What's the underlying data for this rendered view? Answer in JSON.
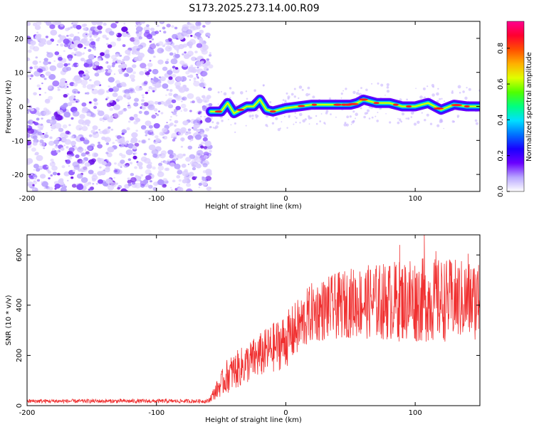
{
  "title": "S173.2025.273.14.00.R09",
  "chart_data": [
    {
      "type": "heatmap",
      "xlabel": "Height of straight line (km)",
      "ylabel": "Frequency (Hz)",
      "xlim": [
        -200,
        150
      ],
      "ylim": [
        -25,
        25
      ],
      "xticks": [
        -200,
        -100,
        0,
        100
      ],
      "xtick_labels": [
        "-200",
        "-100",
        "0",
        "100"
      ],
      "yticks": [
        -20,
        -10,
        0,
        10,
        20
      ],
      "ytick_labels": [
        "-20",
        "-10",
        "0",
        "10",
        "20"
      ],
      "noise_region_x": [
        -200,
        -58
      ],
      "signal_track": [
        {
          "x": -58,
          "y": -1.5
        },
        {
          "x": -50,
          "y": -1.5
        },
        {
          "x": -45,
          "y": 1
        },
        {
          "x": -40,
          "y": -2
        },
        {
          "x": -35,
          "y": -1
        },
        {
          "x": -30,
          "y": 0
        },
        {
          "x": -25,
          "y": 0
        },
        {
          "x": -20,
          "y": 2
        },
        {
          "x": -15,
          "y": -1
        },
        {
          "x": -10,
          "y": -1.5
        },
        {
          "x": -5,
          "y": -1
        },
        {
          "x": 0,
          "y": -0.5
        },
        {
          "x": 10,
          "y": 0
        },
        {
          "x": 20,
          "y": 0.5
        },
        {
          "x": 30,
          "y": 0.5
        },
        {
          "x": 40,
          "y": 0.5
        },
        {
          "x": 50,
          "y": 0.5
        },
        {
          "x": 55,
          "y": 1
        },
        {
          "x": 60,
          "y": 2
        },
        {
          "x": 70,
          "y": 1
        },
        {
          "x": 80,
          "y": 1
        },
        {
          "x": 90,
          "y": 0
        },
        {
          "x": 100,
          "y": 0
        },
        {
          "x": 110,
          "y": 1
        },
        {
          "x": 120,
          "y": -1
        },
        {
          "x": 130,
          "y": 0.5
        },
        {
          "x": 140,
          "y": 0
        },
        {
          "x": 150,
          "y": 0
        }
      ]
    },
    {
      "type": "colorbar",
      "label": "Normalized spectral amplitude",
      "range": [
        0,
        0.95
      ],
      "ticks": [
        0.0,
        0.2,
        0.4,
        0.6,
        0.8
      ],
      "tick_labels": [
        "0.0",
        "0.2",
        "0.4",
        "0.6",
        "0.8"
      ],
      "colors": [
        "#ffffff",
        "#b8a6ff",
        "#6a00ff",
        "#1a00ff",
        "#0070ff",
        "#00e0ff",
        "#00ff80",
        "#50ff00",
        "#e0ff00",
        "#ffb000",
        "#ff5000",
        "#ff0030",
        "#ff0090"
      ]
    },
    {
      "type": "line",
      "xlabel": "Height of straight line (km)",
      "ylabel": "SNR (10 * v/v)",
      "xlim": [
        -200,
        150
      ],
      "ylim": [
        0,
        680
      ],
      "xticks": [
        -200,
        -100,
        0,
        100
      ],
      "xtick_labels": [
        "-200",
        "-100",
        "0",
        "100"
      ],
      "yticks": [
        0,
        200,
        400,
        600
      ],
      "ytick_labels": [
        "0",
        "200",
        "400",
        "600"
      ],
      "line_color": "#f03030",
      "envelope": [
        {
          "x": -200,
          "mean": 18,
          "spread": 8
        },
        {
          "x": -60,
          "mean": 18,
          "spread": 8
        },
        {
          "x": -45,
          "mean": 120,
          "spread": 70
        },
        {
          "x": -20,
          "mean": 200,
          "spread": 90
        },
        {
          "x": 0,
          "mean": 260,
          "spread": 110
        },
        {
          "x": 20,
          "mean": 370,
          "spread": 120
        },
        {
          "x": 50,
          "mean": 410,
          "spread": 140
        },
        {
          "x": 100,
          "mean": 420,
          "spread": 170
        },
        {
          "x": 150,
          "mean": 420,
          "spread": 160
        }
      ],
      "peaks": [
        {
          "x": 88,
          "y": 640
        },
        {
          "x": 96,
          "y": 575
        },
        {
          "x": 107,
          "y": 680
        },
        {
          "x": 116,
          "y": 615
        },
        {
          "x": 141,
          "y": 605
        },
        {
          "x": 149,
          "y": 560
        }
      ]
    }
  ]
}
